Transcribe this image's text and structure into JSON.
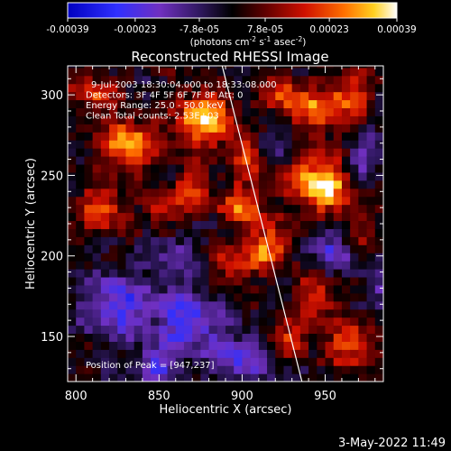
{
  "chart_data": {
    "type": "heatmap",
    "title": "Reconstructed RHESSI Image",
    "xlabel": "Heliocentric X (arcsec)",
    "ylabel": "Heliocentric Y (arcsec)",
    "xlim": [
      795,
      985
    ],
    "ylim": [
      122,
      318
    ],
    "x_ticks": [
      800,
      850,
      900,
      950
    ],
    "y_ticks": [
      150,
      200,
      250,
      300
    ],
    "colorbar": {
      "ticks": [
        "-0.00039",
        "-0.00023",
        "-7.8e-05",
        "7.8e-05",
        "0.00023",
        "0.00039"
      ],
      "range": [
        -0.00039,
        0.00039
      ],
      "label_main": "(photons cm",
      "label_exp1": "-2",
      "label_mid": " s",
      "label_exp2": "-1",
      "label_mid2": " asec",
      "label_exp3": "-2",
      "label_end": ")"
    },
    "annotations": [
      "9-Jul-2003 18:30:04.000 to 18:33:08.000",
      "Detectors: 3F 4F 5F 6F 7F 8F  Att: 0",
      "Energy Range: 25.0 - 50.0 keV",
      "Clean     Total counts: 2.53E+03"
    ],
    "peak_label": "Position of Peak = [947,237]",
    "peak": {
      "x": 947,
      "y": 237
    },
    "limb_line": [
      [
        888,
        318
      ],
      [
        936,
        122
      ]
    ],
    "blobs": [
      {
        "x": 832,
        "y": 270,
        "v": 0.00035,
        "s": 10
      },
      {
        "x": 815,
        "y": 230,
        "v": 0.00025,
        "s": 9
      },
      {
        "x": 812,
        "y": 300,
        "v": 0.0002,
        "s": 9
      },
      {
        "x": 878,
        "y": 285,
        "v": 0.00035,
        "s": 12
      },
      {
        "x": 870,
        "y": 240,
        "v": 0.00022,
        "s": 8
      },
      {
        "x": 852,
        "y": 230,
        "v": 0.0002,
        "s": 7
      },
      {
        "x": 900,
        "y": 232,
        "v": 0.00025,
        "s": 9
      },
      {
        "x": 905,
        "y": 262,
        "v": 0.00022,
        "s": 8
      },
      {
        "x": 947,
        "y": 245,
        "v": 0.00039,
        "s": 12
      },
      {
        "x": 945,
        "y": 290,
        "v": 0.00025,
        "s": 10
      },
      {
        "x": 965,
        "y": 300,
        "v": 0.00022,
        "s": 9
      },
      {
        "x": 925,
        "y": 300,
        "v": 0.0002,
        "s": 8
      },
      {
        "x": 915,
        "y": 205,
        "v": 0.00025,
        "s": 10
      },
      {
        "x": 945,
        "y": 175,
        "v": 0.00022,
        "s": 9
      },
      {
        "x": 965,
        "y": 145,
        "v": 0.00022,
        "s": 10
      },
      {
        "x": 928,
        "y": 150,
        "v": 0.00018,
        "s": 8
      },
      {
        "x": 895,
        "y": 195,
        "v": 0.00018,
        "s": 8
      },
      {
        "x": 968,
        "y": 215,
        "v": 0.00015,
        "s": 8
      },
      {
        "x": 825,
        "y": 170,
        "v": -0.00025,
        "s": 14
      },
      {
        "x": 868,
        "y": 160,
        "v": -0.00025,
        "s": 14
      },
      {
        "x": 900,
        "y": 135,
        "v": -0.0002,
        "s": 12
      },
      {
        "x": 848,
        "y": 130,
        "v": -0.0002,
        "s": 10
      },
      {
        "x": 955,
        "y": 205,
        "v": -0.0002,
        "s": 10
      },
      {
        "x": 972,
        "y": 260,
        "v": -0.00015,
        "s": 9
      },
      {
        "x": 860,
        "y": 200,
        "v": -0.00015,
        "s": 9
      },
      {
        "x": 918,
        "y": 270,
        "v": -0.00012,
        "s": 8
      },
      {
        "x": 985,
        "y": 180,
        "v": -0.00012,
        "s": 9
      }
    ],
    "colors": {
      "background": "#000000",
      "text": "#ffffff",
      "frame": "#ffffff"
    }
  },
  "footer": {
    "timestamp": "3-May-2022 11:49"
  }
}
